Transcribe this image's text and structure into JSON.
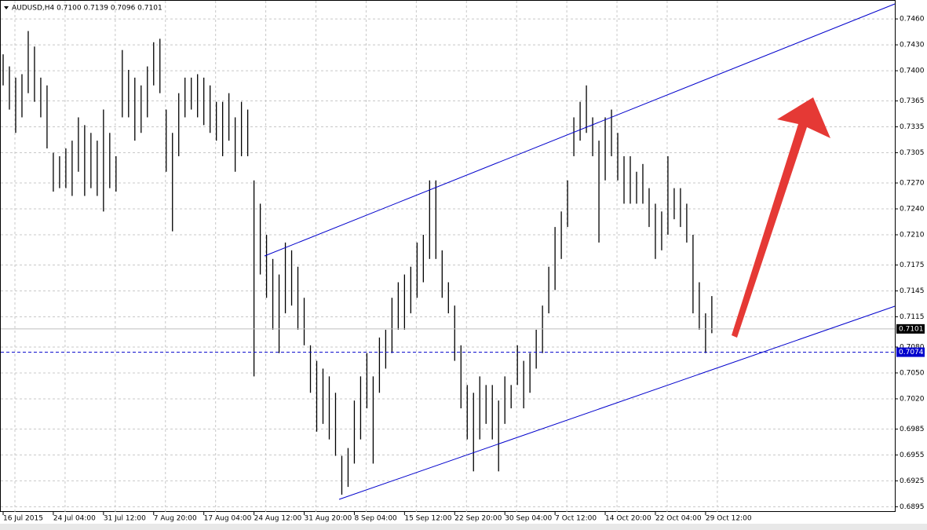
{
  "chart_data": {
    "type": "ohlc",
    "title": "AUDUSD,H4  0.7100 0.7139 0.7096 0.7101",
    "categories": [
      "16 Jul 2015",
      null,
      null,
      null,
      null,
      null,
      null,
      null,
      "24 Jul 04:00",
      null,
      null,
      null,
      null,
      null,
      null,
      null,
      "31 Jul 12:00",
      null,
      null,
      null,
      null,
      null,
      null,
      null,
      "7 Aug 20:00",
      null,
      null,
      null,
      null,
      null,
      null,
      null,
      "17 Aug 04:00",
      null,
      null,
      null,
      null,
      null,
      null,
      null,
      "24 Aug 12:00",
      null,
      null,
      null,
      null,
      null,
      null,
      null,
      "31 Aug 20:00",
      null,
      null,
      null,
      null,
      null,
      null,
      null,
      "8 Sep 04:00",
      null,
      null,
      null,
      null,
      null,
      null,
      null,
      "15 Sep 12:00",
      null,
      null,
      null,
      null,
      null,
      null,
      null,
      "22 Sep 20:00",
      null,
      null,
      null,
      null,
      null,
      null,
      null,
      "30 Sep 04:00",
      null,
      null,
      null,
      null,
      null,
      null,
      null,
      "7 Oct 12:00",
      null,
      null,
      null,
      null,
      null,
      null,
      null,
      "14 Oct 20:00",
      null,
      null,
      null,
      null,
      null,
      null,
      null,
      "22 Oct 04:00",
      null,
      null,
      null,
      null,
      null,
      null,
      null,
      "29 Oct 12:00",
      null
    ],
    "high": [
      0.7419,
      0.7405,
      0.7392,
      0.7396,
      0.7446,
      0.7428,
      0.7392,
      0.7383,
      0.7305,
      0.7301,
      0.731,
      0.7319,
      0.7346,
      0.7337,
      0.7328,
      0.7319,
      0.7355,
      0.7328,
      0.7301,
      0.7424,
      0.7401,
      0.7392,
      0.7383,
      0.7405,
      0.7433,
      0.7437,
      0.7355,
      0.7328,
      0.7374,
      0.7392,
      0.7392,
      0.7396,
      0.7392,
      0.7383,
      0.7364,
      0.7364,
      0.7374,
      0.7346,
      0.7364,
      0.7355,
      0.7273,
      0.7246,
      0.721,
      0.7182,
      0.7164,
      0.7201,
      0.7192,
      0.7173,
      0.7137,
      0.7082,
      0.7064,
      0.7055,
      0.7046,
      0.7027,
      0.6954,
      0.6963,
      0.7018,
      0.7046,
      0.7073,
      0.7046,
      0.7091,
      0.71,
      0.7137,
      0.7155,
      0.7164,
      0.7173,
      0.7201,
      0.721,
      0.7273,
      0.7273,
      0.7192,
      0.7155,
      0.7128,
      0.7082,
      0.7036,
      0.7027,
      0.7046,
      0.7036,
      0.7036,
      0.7018,
      0.7046,
      0.7036,
      0.7082,
      0.7064,
      0.7073,
      0.71,
      0.7128,
      0.7173,
      0.7219,
      0.7237,
      0.7273,
      0.7346,
      0.7364,
      0.7383,
      0.7346,
      0.7319,
      0.7346,
      0.7355,
      0.7328,
      0.7301,
      0.7301,
      0.7283,
      0.7292,
      0.7264,
      0.7246,
      0.7237,
      0.7301,
      0.7264,
      0.7264,
      0.7246,
      0.721,
      0.7155,
      0.7119,
      0.7139
    ],
    "low": [
      0.7383,
      0.7355,
      0.7328,
      0.7346,
      0.7374,
      0.7364,
      0.7346,
      0.731,
      0.726,
      0.7264,
      0.7264,
      0.7255,
      0.7283,
      0.7255,
      0.7264,
      0.7255,
      0.7237,
      0.7264,
      0.726,
      0.7346,
      0.7346,
      0.7319,
      0.7328,
      0.7346,
      0.7383,
      0.7374,
      0.7283,
      0.7214,
      0.7301,
      0.7346,
      0.7355,
      0.7346,
      0.7337,
      0.7328,
      0.7319,
      0.7301,
      0.7319,
      0.7283,
      0.7301,
      0.7301,
      0.7046,
      0.7164,
      0.7137,
      0.71,
      0.7073,
      0.7119,
      0.7128,
      0.71,
      0.7082,
      0.7027,
      0.6982,
      0.6991,
      0.6973,
      0.6954,
      0.6909,
      0.6918,
      0.6945,
      0.6973,
      0.7009,
      0.6945,
      0.7027,
      0.7055,
      0.7073,
      0.71,
      0.71,
      0.7119,
      0.7137,
      0.7155,
      0.7182,
      0.7182,
      0.7137,
      0.7119,
      0.7064,
      0.7009,
      0.6973,
      0.6936,
      0.6973,
      0.6991,
      0.6973,
      0.6936,
      0.6991,
      0.7009,
      0.7036,
      0.7009,
      0.7027,
      0.7055,
      0.7073,
      0.7119,
      0.7146,
      0.7182,
      0.7219,
      0.7301,
      0.7319,
      0.7328,
      0.7301,
      0.7201,
      0.7273,
      0.7301,
      0.7273,
      0.7246,
      0.7246,
      0.7246,
      0.7246,
      0.7219,
      0.7182,
      0.7192,
      0.721,
      0.7228,
      0.7219,
      0.7201,
      0.7119,
      0.71,
      0.7073,
      0.7096
    ],
    "color": "#000000",
    "bid": 0.7101,
    "level": 0.7074,
    "ylim": [
      0.6889,
      0.7481
    ],
    "yticks": [
      {
        "value": 0.746,
        "label": "0.7460"
      },
      {
        "value": 0.743,
        "label": "0.7430"
      },
      {
        "value": 0.74,
        "label": "0.7400"
      },
      0.7365,
      0.7335,
      0.7305,
      {
        "value": 0.727,
        "label": "0.7270"
      },
      {
        "value": 0.724,
        "label": "0.7240"
      },
      {
        "value": 0.721,
        "label": "0.7210"
      },
      0.7175,
      0.7145,
      0.7115,
      {
        "value": 0.708,
        "label": "0.7080"
      },
      {
        "value": 0.705,
        "label": "0.7050"
      },
      {
        "value": 0.702,
        "label": "0.7020"
      },
      0.6985,
      0.6955,
      0.6925,
      0.6895
    ],
    "grid": true
  }
}
